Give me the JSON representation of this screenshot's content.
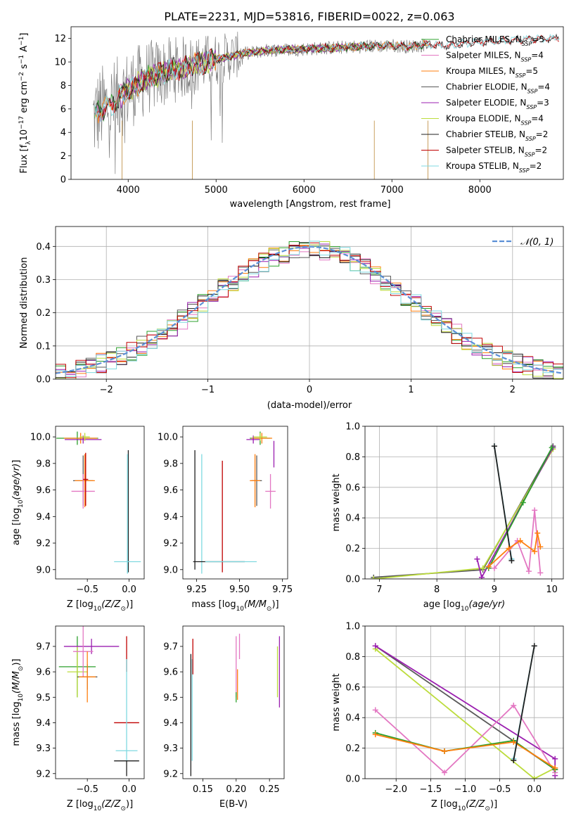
{
  "figure": {
    "title": "PLATE=2231, MJD=53816, FIBERID=0022, z=0.063"
  },
  "colors": {
    "Chabrier MILES": "#2ca02c",
    "Salpeter MILES": "#e377c2",
    "Kroupa MILES": "#ff7f0e",
    "Chabrier ELODIE": "#595959",
    "Salpeter ELODIE": "#9b1fb0",
    "Kroupa ELODIE": "#bcdc3c",
    "Chabrier STELIB": "#1f1f1f",
    "Salpeter STELIB": "#c00000",
    "Kroupa STELIB": "#7fd9e0",
    "data": "#808080",
    "gauss": "#5b8fd6"
  },
  "chart_data": [
    {
      "id": "spectrum",
      "type": "line",
      "xlabel": "wavelength [Angstrom, rest frame]",
      "ylabel": "Flux [f_λ10^-17 erg cm^-2 s^-1 A^-1]",
      "xlim": [
        3350,
        8950
      ],
      "ylim": [
        0,
        13
      ],
      "xticks": [
        4000,
        5000,
        6000,
        7000,
        8000
      ],
      "yticks": [
        0,
        2,
        4,
        6,
        8,
        10,
        12
      ],
      "legend_position": "right",
      "legend": [
        {
          "label": "Chabrier MILES, N",
          "sub": "SSP",
          "suffix": "=5",
          "model": "Chabrier MILES"
        },
        {
          "label": "Salpeter MILES, N",
          "sub": "SSP",
          "suffix": "=4",
          "model": "Salpeter MILES"
        },
        {
          "label": "Kroupa MILES, N",
          "sub": "SSP",
          "suffix": "=5",
          "model": "Kroupa MILES"
        },
        {
          "label": "Chabrier ELODIE, N",
          "sub": "SSP",
          "suffix": "=4",
          "model": "Chabrier ELODIE"
        },
        {
          "label": "Salpeter ELODIE, N",
          "sub": "SSP",
          "suffix": "=3",
          "model": "Salpeter ELODIE"
        },
        {
          "label": "Kroupa ELODIE, N",
          "sub": "SSP",
          "suffix": "=4",
          "model": "Kroupa ELODIE"
        },
        {
          "label": "Chabrier STELIB, N",
          "sub": "SSP",
          "suffix": "=2",
          "model": "Chabrier STELIB"
        },
        {
          "label": "Salpeter STELIB, N",
          "sub": "SSP",
          "suffix": "=2",
          "model": "Salpeter STELIB"
        },
        {
          "label": "Kroupa STELIB, N",
          "sub": "SSP",
          "suffix": "=2",
          "model": "Kroupa STELIB"
        }
      ],
      "continuum": [
        [
          3600,
          5.2
        ],
        [
          3700,
          6.0
        ],
        [
          3800,
          6.3
        ],
        [
          3900,
          7.0
        ],
        [
          4000,
          7.6
        ],
        [
          4200,
          8.6
        ],
        [
          4500,
          9.3
        ],
        [
          4800,
          9.8
        ],
        [
          5000,
          10.2
        ],
        [
          5300,
          10.7
        ],
        [
          5600,
          11.0
        ],
        [
          6000,
          11.1
        ],
        [
          6300,
          11.2
        ],
        [
          6600,
          11.3
        ],
        [
          7000,
          11.4
        ],
        [
          7200,
          11.3
        ],
        [
          7400,
          11.5
        ],
        [
          7600,
          11.4
        ],
        [
          8000,
          11.7
        ],
        [
          8400,
          11.9
        ],
        [
          8900,
          12.0
        ]
      ],
      "data_range": [
        3600,
        7420
      ],
      "model_ranges": {
        "MILES": [
          3620,
          7410
        ],
        "ELODIE": [
          3900,
          6800
        ],
        "STELIB": [
          3620,
          8900
        ]
      },
      "dips": [
        [
          3930,
          0
        ],
        [
          4730,
          0
        ],
        [
          6800,
          0
        ],
        [
          7410,
          0
        ]
      ]
    },
    {
      "id": "residuals",
      "type": "histogram",
      "xlabel": "(data-model)/error",
      "ylabel": "Normed distribution",
      "xlim": [
        -2.5,
        2.5
      ],
      "ylim": [
        0,
        0.46
      ],
      "xticks": [
        -2,
        -1,
        0,
        1,
        2
      ],
      "yticks": [
        0.0,
        0.1,
        0.2,
        0.3,
        0.4
      ],
      "grid": true,
      "bin_width": 0.1,
      "gauss_label": "𝒩(0, 1)",
      "legend_position": "top-right"
    },
    {
      "id": "age-vs-Z",
      "type": "scatter",
      "xlabel_pre": "Z [log",
      "xlabel_sub": "10",
      "xlabel_post": "(Z/Z",
      "xlabel_sub2": "⊙",
      "xlabel_end": ")]",
      "ylabel": "age  [log10(age/yr)]",
      "xlim": [
        -0.88,
        0.18
      ],
      "ylim": [
        8.93,
        10.08
      ],
      "xticks": [
        -0.5,
        0.0
      ],
      "yticks": [
        9.0,
        9.2,
        9.4,
        9.6,
        9.8,
        10.0
      ],
      "points": [
        {
          "model": "Chabrier MILES",
          "x": -0.62,
          "y": 9.99,
          "xerr": 0.25,
          "yerr": 0.05
        },
        {
          "model": "Kroupa MILES",
          "x": -0.58,
          "y": 9.99,
          "xerr": 0.2,
          "yerr": 0.04
        },
        {
          "model": "Salpeter ELODIE",
          "x": -0.55,
          "y": 9.98,
          "xerr": 0.22,
          "yerr": 0.03
        },
        {
          "model": "Kroupa ELODIE",
          "x": -0.53,
          "y": 10.0,
          "xerr": 0.06,
          "yerr": 0.03
        },
        {
          "model": "Chabrier ELODIE",
          "x": -0.55,
          "y": 9.67,
          "xerr": 0.12,
          "yerr": 0.19
        },
        {
          "model": "Kroupa MILES",
          "x": -0.53,
          "y": 9.67,
          "xerr": 0.12,
          "yerr": 0.2
        },
        {
          "model": "Salpeter MILES",
          "x": -0.55,
          "y": 9.59,
          "xerr": 0.14,
          "yerr": 0.13
        },
        {
          "model": "Salpeter STELIB",
          "x": -0.52,
          "y": 9.68,
          "xerr": 0.03,
          "yerr": 0.2
        },
        {
          "model": "Chabrier STELIB",
          "x": -0.01,
          "y": 9.44,
          "xerr": 0.0,
          "yerr": 0.46
        },
        {
          "model": "Kroupa STELIB",
          "x": -0.02,
          "y": 9.06,
          "xerr": 0.16,
          "yerr": 0.09
        },
        {
          "model": "Kroupa STELIB",
          "x": -0.02,
          "y": 9.42,
          "xerr": 0.0,
          "yerr": 0.45
        }
      ]
    },
    {
      "id": "age-vs-mass",
      "type": "scatter",
      "xlabel_pre": "mass [log",
      "xlabel_sub": "10",
      "xlabel_post": "(M/M",
      "xlabel_sub2": "⊙",
      "xlabel_end": ")]",
      "xlim": [
        9.17,
        9.78
      ],
      "ylim": [
        8.93,
        10.08
      ],
      "xticks": [
        9.25,
        9.5,
        9.75
      ],
      "yticks": [
        9.0,
        9.2,
        9.4,
        9.6,
        9.8,
        10.0
      ],
      "points": [
        {
          "model": "Chabrier MILES",
          "x": 9.62,
          "y": 9.99,
          "xerr": 0.06,
          "yerr": 0.05
        },
        {
          "model": "Kroupa MILES",
          "x": 9.63,
          "y": 9.99,
          "xerr": 0.06,
          "yerr": 0.04
        },
        {
          "model": "Salpeter ELODIE",
          "x": 9.58,
          "y": 9.98,
          "xerr": 0.04,
          "yerr": 0.03
        },
        {
          "model": "Kroupa ELODIE",
          "x": 9.62,
          "y": 10.0,
          "xerr": 0.04,
          "yerr": 0.03
        },
        {
          "model": "Chabrier ELODIE",
          "x": 9.6,
          "y": 9.67,
          "xerr": 0.03,
          "yerr": 0.19
        },
        {
          "model": "Kroupa MILES",
          "x": 9.59,
          "y": 9.67,
          "xerr": 0.03,
          "yerr": 0.2
        },
        {
          "model": "Salpeter MILES",
          "x": 9.68,
          "y": 9.59,
          "xerr": 0.03,
          "yerr": 0.13
        },
        {
          "model": "Salpeter ELODIE",
          "x": 9.7,
          "y": 9.87,
          "xerr": 0.0,
          "yerr": 0.1
        },
        {
          "model": "Chabrier STELIB",
          "x": 9.24,
          "y": 9.45,
          "xerr": 0.0,
          "yerr": 0.45
        },
        {
          "model": "Kroupa STELIB",
          "x": 9.28,
          "y": 9.42,
          "xerr": 0.0,
          "yerr": 0.45
        },
        {
          "model": "Salpeter STELIB",
          "x": 9.4,
          "y": 9.4,
          "xerr": 0.0,
          "yerr": 0.42
        },
        {
          "model": "Chabrier STELIB",
          "x": 9.38,
          "y": 9.06,
          "xerr": 0.15,
          "yerr": 0.0
        },
        {
          "model": "Kroupa STELIB",
          "x": 9.45,
          "y": 9.06,
          "xerr": 0.15,
          "yerr": 0.0
        }
      ]
    },
    {
      "id": "weight-vs-age",
      "type": "line",
      "xlabel_pre": "age  [log",
      "xlabel_sub": "10",
      "xlabel_post": "(age/yr)",
      "xlabel_end": "",
      "ylabel": "mass weight",
      "xlim": [
        6.75,
        10.2
      ],
      "ylim": [
        0,
        1
      ],
      "xticks": [
        7,
        8,
        9,
        10
      ],
      "yticks": [
        0.0,
        0.2,
        0.4,
        0.6,
        0.8,
        1.0
      ],
      "grid": true,
      "series": [
        {
          "model": "Chabrier ELODIE",
          "x": [
            6.9,
            8.8,
            10.02
          ],
          "y": [
            0.01,
            0.06,
            0.87
          ]
        },
        {
          "model": "Kroupa ELODIE",
          "x": [
            6.9,
            8.8,
            10.02
          ],
          "y": [
            0.0,
            0.07,
            0.85
          ]
        },
        {
          "model": "Salpeter ELODIE",
          "x": [
            8.7,
            8.78,
            10.02
          ],
          "y": [
            0.13,
            0.01,
            0.86
          ]
        },
        {
          "model": "Chabrier MILES",
          "x": [
            8.9,
            9.5,
            10.0
          ],
          "y": [
            0.07,
            0.5,
            0.86
          ]
        },
        {
          "model": "Kroupa STELIB",
          "x": [
            9.0,
            9.3
          ],
          "y": [
            0.87,
            0.13
          ]
        },
        {
          "model": "Chabrier STELIB",
          "x": [
            9.0,
            9.3
          ],
          "y": [
            0.87,
            0.12
          ]
        },
        {
          "model": "Salpeter MILES",
          "x": [
            9.0,
            9.4,
            9.6,
            9.7,
            9.8
          ],
          "y": [
            0.07,
            0.25,
            0.05,
            0.45,
            0.04
          ]
        },
        {
          "model": "Kroupa MILES",
          "x": [
            8.9,
            9.25,
            9.45,
            9.7,
            9.75,
            9.8
          ],
          "y": [
            0.08,
            0.2,
            0.25,
            0.18,
            0.3,
            0.21
          ]
        }
      ]
    },
    {
      "id": "mass-vs-Z",
      "type": "scatter",
      "xlabel_pre": "Z [log",
      "xlabel_sub": "10",
      "xlabel_post": "(Z/Z",
      "xlabel_sub2": "⊙",
      "xlabel_end": ")]",
      "ylabel": "mass [log10(M/M⊙)]",
      "xlim": [
        -0.88,
        0.18
      ],
      "ylim": [
        9.18,
        9.78
      ],
      "xticks": [
        -0.5,
        0.0
      ],
      "yticks": [
        9.2,
        9.3,
        9.4,
        9.5,
        9.6,
        9.7
      ],
      "points": [
        {
          "model": "Chabrier MILES",
          "x": -0.62,
          "y": 9.62,
          "xerr": 0.22,
          "yerr": 0.12
        },
        {
          "model": "Kroupa ELODIE",
          "x": -0.62,
          "y": 9.6,
          "xerr": 0.12,
          "yerr": 0.1
        },
        {
          "model": "Salpeter ELODIE",
          "x": -0.45,
          "y": 9.7,
          "xerr": 0.33,
          "yerr": 0.03
        },
        {
          "model": "Salpeter MILES",
          "x": -0.55,
          "y": 9.68,
          "xerr": 0.12,
          "yerr": 0.1
        },
        {
          "model": "Chabrier ELODIE",
          "x": -0.5,
          "y": 9.58,
          "xerr": 0.12,
          "yerr": 0.05
        },
        {
          "model": "Kroupa MILES",
          "x": -0.5,
          "y": 9.58,
          "xerr": 0.1,
          "yerr": 0.1
        },
        {
          "model": "Salpeter STELIB",
          "x": -0.03,
          "y": 9.4,
          "xerr": 0.15,
          "yerr": 0.0
        },
        {
          "model": "Salpeter STELIB",
          "x": -0.03,
          "y": 9.67,
          "xerr": 0.0,
          "yerr": 0.07
        },
        {
          "model": "Kroupa STELIB",
          "x": -0.03,
          "y": 9.29,
          "xerr": 0.13,
          "yerr": 0.0
        },
        {
          "model": "Kroupa STELIB",
          "x": -0.03,
          "y": 9.45,
          "xerr": 0.0,
          "yerr": 0.2
        },
        {
          "model": "Chabrier STELIB",
          "x": -0.03,
          "y": 9.25,
          "xerr": 0.15,
          "yerr": 0.0
        },
        {
          "model": "Chabrier STELIB",
          "x": -0.03,
          "y": 9.22,
          "xerr": 0.0,
          "yerr": 0.03
        }
      ]
    },
    {
      "id": "mass-vs-ebv",
      "type": "scatter",
      "xlabel_pre": "E(B-V)",
      "xlabel_sub": "",
      "xlabel_post": "",
      "xlabel_end": "",
      "xlim": [
        0.12,
        0.272
      ],
      "ylim": [
        9.18,
        9.78
      ],
      "xticks": [
        0.15,
        0.2,
        0.25
      ],
      "yticks": [
        9.2,
        9.3,
        9.4,
        9.5,
        9.6,
        9.7
      ],
      "points": [
        {
          "model": "Chabrier STELIB",
          "x": 0.132,
          "y": 9.43,
          "xerr": 0.0,
          "yerr": 0.24
        },
        {
          "model": "Kroupa STELIB",
          "x": 0.134,
          "y": 9.45,
          "xerr": 0.0,
          "yerr": 0.2
        },
        {
          "model": "Salpeter STELIB",
          "x": 0.135,
          "y": 9.66,
          "xerr": 0.0,
          "yerr": 0.07
        },
        {
          "model": "Salpeter MILES",
          "x": 0.2,
          "y": 9.62,
          "xerr": 0.0,
          "yerr": 0.12
        },
        {
          "model": "Kroupa MILES",
          "x": 0.202,
          "y": 9.55,
          "xerr": 0.0,
          "yerr": 0.06
        },
        {
          "model": "Chabrier MILES",
          "x": 0.2,
          "y": 9.5,
          "xerr": 0.0,
          "yerr": 0.02
        },
        {
          "model": "Salpeter MILES",
          "x": 0.205,
          "y": 9.7,
          "xerr": 0.0,
          "yerr": 0.05
        },
        {
          "model": "Kroupa ELODIE",
          "x": 0.262,
          "y": 9.6,
          "xerr": 0.0,
          "yerr": 0.1
        },
        {
          "model": "Salpeter ELODIE",
          "x": 0.265,
          "y": 9.6,
          "xerr": 0.0,
          "yerr": 0.14
        }
      ]
    },
    {
      "id": "weight-vs-Z",
      "type": "line",
      "xlabel_pre": "Z [log",
      "xlabel_sub": "10",
      "xlabel_post": "(Z/Z",
      "xlabel_sub2": "⊙",
      "xlabel_end": ")]",
      "ylabel": "mass weight",
      "xlim": [
        -2.45,
        0.42
      ],
      "ylim": [
        0,
        1
      ],
      "xticks": [
        -2.0,
        -1.5,
        -1.0,
        -0.5,
        0.0
      ],
      "yticks": [
        0.0,
        0.2,
        0.4,
        0.6,
        0.8,
        1.0
      ],
      "grid": true,
      "series": [
        {
          "model": "Chabrier ELODIE",
          "x": [
            -2.3,
            0.3
          ],
          "y": [
            0.87,
            0.06
          ]
        },
        {
          "model": "Kroupa ELODIE",
          "x": [
            -2.3,
            0.0,
            0.3
          ],
          "y": [
            0.85,
            0.0,
            0.07
          ]
        },
        {
          "model": "Salpeter ELODIE",
          "x": [
            -2.3,
            0.3,
            0.3
          ],
          "y": [
            0.87,
            0.13,
            0.02
          ]
        },
        {
          "model": "Salpeter MILES",
          "x": [
            -2.3,
            -1.3,
            -0.3,
            0.3
          ],
          "y": [
            0.45,
            0.04,
            0.48,
            0.04
          ]
        },
        {
          "model": "Chabrier MILES",
          "x": [
            -2.3,
            -1.3,
            -0.3,
            0.3
          ],
          "y": [
            0.3,
            0.18,
            0.25,
            0.06
          ]
        },
        {
          "model": "Kroupa MILES",
          "x": [
            -2.3,
            -1.3,
            -0.3,
            0.3
          ],
          "y": [
            0.29,
            0.18,
            0.24,
            0.07
          ]
        },
        {
          "model": "Kroupa STELIB",
          "x": [
            -0.3,
            0.0
          ],
          "y": [
            0.13,
            0.87
          ]
        },
        {
          "model": "Chabrier STELIB",
          "x": [
            -0.3,
            0.0
          ],
          "y": [
            0.12,
            0.87
          ]
        }
      ]
    }
  ]
}
